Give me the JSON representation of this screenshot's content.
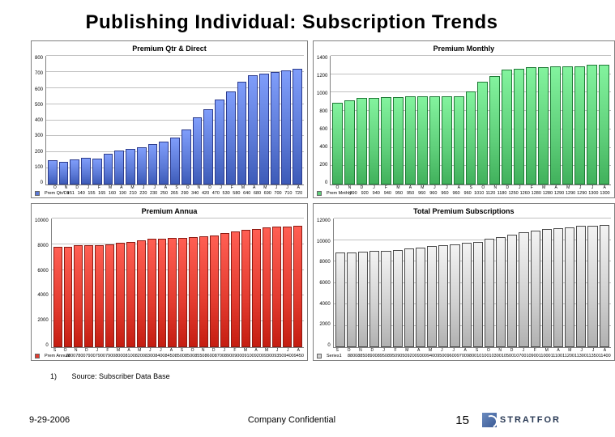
{
  "title": "Publishing Individual:  Subscription Trends",
  "source_note_num": "1)",
  "source_note": "Source: Subscriber Data Base",
  "footer": {
    "date": "9-29-2006",
    "confidential": "Company Confidential",
    "page": "15",
    "logo_text": "STRATFOR"
  },
  "style": {
    "grid_color": "#c0c0c0",
    "axis_color": "#808080",
    "background": "#ffffff",
    "title_fontsize": 24
  },
  "charts": [
    {
      "title": "Premium Qtr & Direct",
      "type": "bar",
      "bar_color_fill": "#5b79d6",
      "bar_color_border": "#2c3b8c",
      "legend_label": "Prem Qtr/Dir",
      "ymin": 0,
      "ymax": 800,
      "ystep": 100,
      "categories": [
        "O",
        "N",
        "D",
        "J",
        "F",
        "M",
        "A",
        "M",
        "J",
        "J",
        "A",
        "S",
        "O",
        "N",
        "D",
        "J",
        "F",
        "M",
        "A",
        "M",
        "J",
        "J",
        "A"
      ],
      "values": [
        151,
        140,
        155,
        165,
        160,
        190,
        210,
        220,
        230,
        250,
        265,
        290,
        340,
        420,
        470,
        530,
        580,
        640,
        680,
        690,
        700,
        710,
        720
      ]
    },
    {
      "title": "Premium Monthly",
      "type": "bar",
      "bar_color_fill": "#5fcf7a",
      "bar_color_border": "#1f7a36",
      "legend_label": "Prem Mnthly",
      "ymin": 0,
      "ymax": 1400,
      "ystep": 200,
      "categories": [
        "O",
        "N",
        "D",
        "J",
        "F",
        "M",
        "A",
        "M",
        "J",
        "J",
        "A",
        "S",
        "O",
        "N",
        "D",
        "J",
        "F",
        "M",
        "A",
        "M",
        "J",
        "J",
        "A"
      ],
      "values": [
        890,
        920,
        940,
        940,
        950,
        950,
        960,
        960,
        960,
        960,
        960,
        1010,
        1120,
        1180,
        1250,
        1260,
        1280,
        1280,
        1290,
        1290,
        1290,
        1300,
        1300
      ]
    },
    {
      "title": "Premium Annua",
      "type": "bar",
      "bar_color_fill": "#e33b2f",
      "bar_color_border": "#8c1a12",
      "legend_label": "Prem Annual",
      "ymin": 0,
      "ymax": 10000,
      "ystep": 2000,
      "categories": [
        "S",
        "O",
        "N",
        "D",
        "J",
        "F",
        "M",
        "A",
        "M",
        "J",
        "J",
        "A",
        "S",
        "O",
        "N",
        "D",
        "J",
        "F",
        "M",
        "A",
        "M",
        "J",
        "J",
        "A"
      ],
      "values": [
        7800,
        7800,
        7900,
        7900,
        7900,
        8000,
        8100,
        8200,
        8300,
        8400,
        8450,
        8500,
        8500,
        8550,
        8600,
        8700,
        8900,
        9000,
        9100,
        9200,
        9300,
        9350,
        9400,
        9450
      ]
    },
    {
      "title": "Total Premium Subscriptions",
      "type": "bar",
      "bar_color_fill": "#cfcfcf",
      "bar_color_border": "#4a4a4a",
      "legend_label": "Series1",
      "ymin": 0,
      "ymax": 12000,
      "ystep": 2000,
      "categories": [
        "S",
        "O",
        "N",
        "D",
        "J",
        "F",
        "M",
        "A",
        "M",
        "J",
        "J",
        "A",
        "S",
        "O",
        "N",
        "D",
        "J",
        "F",
        "M",
        "A",
        "M",
        "J",
        "J",
        "A"
      ],
      "values": [
        8800,
        8850,
        8900,
        8950,
        8950,
        9050,
        9200,
        9300,
        9400,
        9500,
        9600,
        9700,
        9800,
        10100,
        10300,
        10500,
        10700,
        10900,
        11000,
        11100,
        11200,
        11300,
        11350,
        11400
      ]
    }
  ]
}
